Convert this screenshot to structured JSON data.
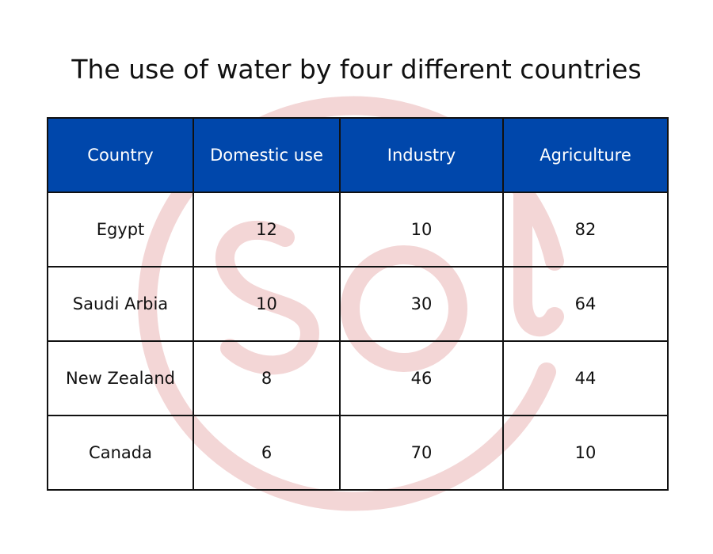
{
  "title": "The use of water by four different countries",
  "colors": {
    "header_bg": "#0047ab",
    "header_text": "#ffffff",
    "border": "#111111",
    "watermark": "#f3d6d6"
  },
  "watermark_icon": "logo-watermark-icon",
  "table": {
    "headers": [
      "Country",
      "Domestic use",
      "Industry",
      "Agriculture"
    ],
    "rows": [
      [
        "Egypt",
        "12",
        "10",
        "82"
      ],
      [
        "Saudi Arbia",
        "10",
        "30",
        "64"
      ],
      [
        "New Zealand",
        "8",
        "46",
        "44"
      ],
      [
        "Canada",
        "6",
        "70",
        "10"
      ]
    ]
  },
  "chart_data": {
    "type": "table",
    "title": "The use of water by four different countries",
    "columns": [
      "Country",
      "Domestic use",
      "Industry",
      "Agriculture"
    ],
    "rows": [
      {
        "Country": "Egypt",
        "Domestic use": 12,
        "Industry": 10,
        "Agriculture": 82
      },
      {
        "Country": "Saudi Arbia",
        "Domestic use": 10,
        "Industry": 30,
        "Agriculture": 64
      },
      {
        "Country": "New Zealand",
        "Domestic use": 8,
        "Industry": 46,
        "Agriculture": 44
      },
      {
        "Country": "Canada",
        "Domestic use": 6,
        "Industry": 70,
        "Agriculture": 10
      }
    ]
  }
}
